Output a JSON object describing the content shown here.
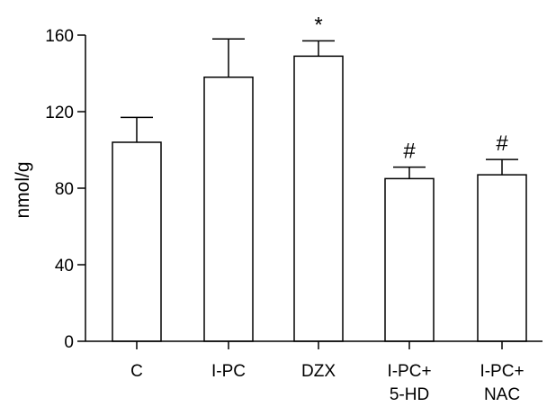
{
  "chart_data": {
    "type": "bar",
    "categories": [
      [
        "C"
      ],
      [
        "I-PC"
      ],
      [
        "DZX"
      ],
      [
        "I-PC+",
        "5-HD"
      ],
      [
        "I-PC+",
        "NAC"
      ]
    ],
    "values": [
      104,
      138,
      149,
      85,
      87
    ],
    "errors": [
      13,
      20,
      8,
      6,
      8
    ],
    "annotations": [
      "",
      "",
      "*",
      "#",
      "#"
    ],
    "ylabel": "nmol/g",
    "xlabel": "",
    "ylim": [
      0,
      160
    ],
    "yticks": [
      0,
      40,
      80,
      120,
      160
    ],
    "grid": false,
    "bar_fill": "#ffffff",
    "bar_stroke": "#000000"
  }
}
